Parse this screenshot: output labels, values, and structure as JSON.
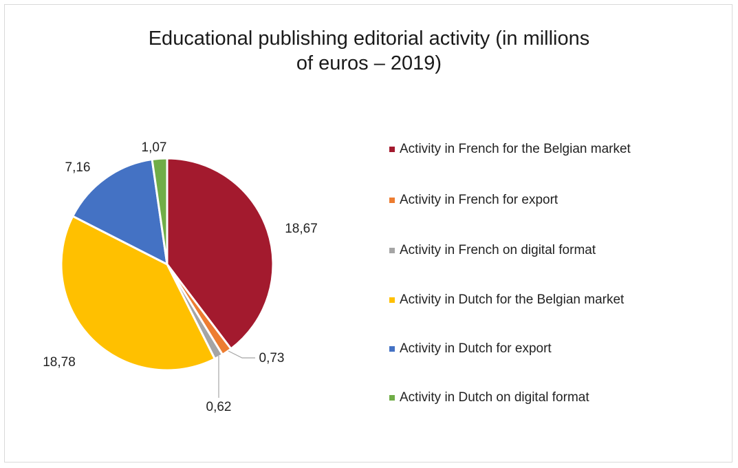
{
  "chart_data": {
    "type": "pie",
    "title": "Educational publishing editorial activity (in millions of euros – 2019)",
    "title_lines": [
      "Educational publishing editorial activity (in millions",
      "of euros – 2019)"
    ],
    "slices": [
      {
        "label": "Activity in French for the Belgian market",
        "value": 18.67,
        "value_label": "18,67",
        "color": "#a31a2e"
      },
      {
        "label": "Activity in French for export",
        "value": 0.73,
        "value_label": "0,73",
        "color": "#ed7d31"
      },
      {
        "label": "Activity in French on digital format",
        "value": 0.62,
        "value_label": "0,62",
        "color": "#a5a5a5"
      },
      {
        "label": "Activity in Dutch for the Belgian market",
        "value": 18.78,
        "value_label": "18,78",
        "color": "#ffc000"
      },
      {
        "label": "Activity in Dutch for export",
        "value": 7.16,
        "value_label": "7,16",
        "color": "#4472c4"
      },
      {
        "label": "Activity in Dutch on digital format",
        "value": 1.07,
        "value_label": "1,07",
        "color": "#70ad47"
      }
    ],
    "legend_position": "right"
  }
}
